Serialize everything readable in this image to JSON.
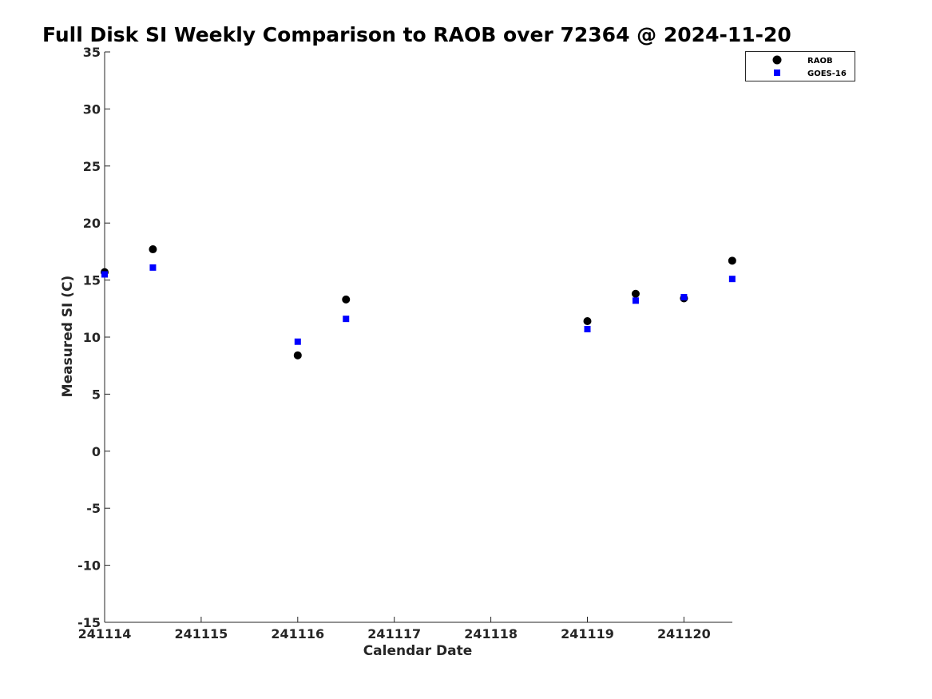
{
  "chart_data": {
    "type": "scatter",
    "title": "Full Disk SI Weekly Comparison to RAOB over 72364 @ 2024-11-20",
    "xlabel": "Calendar Date",
    "ylabel": "Measured SI (C)",
    "xticks": [
      "241114",
      "241115",
      "241116",
      "241117",
      "241118",
      "241119",
      "241120"
    ],
    "xlim": [
      "241114",
      "241120 12Z"
    ],
    "yticks": [
      35,
      30,
      25,
      20,
      15,
      10,
      5,
      0,
      -5,
      -10,
      -15
    ],
    "ylim": [
      -15,
      35
    ],
    "grid": false,
    "legend_position": "top-right",
    "series": [
      {
        "name": "RAOB",
        "marker": "circle",
        "color": "#000000",
        "points": [
          {
            "x": "241114 00Z",
            "y": 15.7
          },
          {
            "x": "241114 12Z",
            "y": 17.7
          },
          {
            "x": "241116 00Z",
            "y": 8.4
          },
          {
            "x": "241116 12Z",
            "y": 13.3
          },
          {
            "x": "241119 00Z",
            "y": 11.4
          },
          {
            "x": "241119 12Z",
            "y": 13.8
          },
          {
            "x": "241120 00Z",
            "y": 13.4
          },
          {
            "x": "241120 12Z",
            "y": 16.7
          }
        ]
      },
      {
        "name": "GOES-16",
        "marker": "square",
        "color": "#0000ff",
        "points": [
          {
            "x": "241114 00Z",
            "y": 15.5
          },
          {
            "x": "241114 12Z",
            "y": 16.1
          },
          {
            "x": "241116 00Z",
            "y": 9.6
          },
          {
            "x": "241116 12Z",
            "y": 11.6
          },
          {
            "x": "241119 00Z",
            "y": 10.7
          },
          {
            "x": "241119 12Z",
            "y": 13.2
          },
          {
            "x": "241120 00Z",
            "y": 13.5
          },
          {
            "x": "241120 12Z",
            "y": 15.1
          }
        ]
      }
    ]
  }
}
